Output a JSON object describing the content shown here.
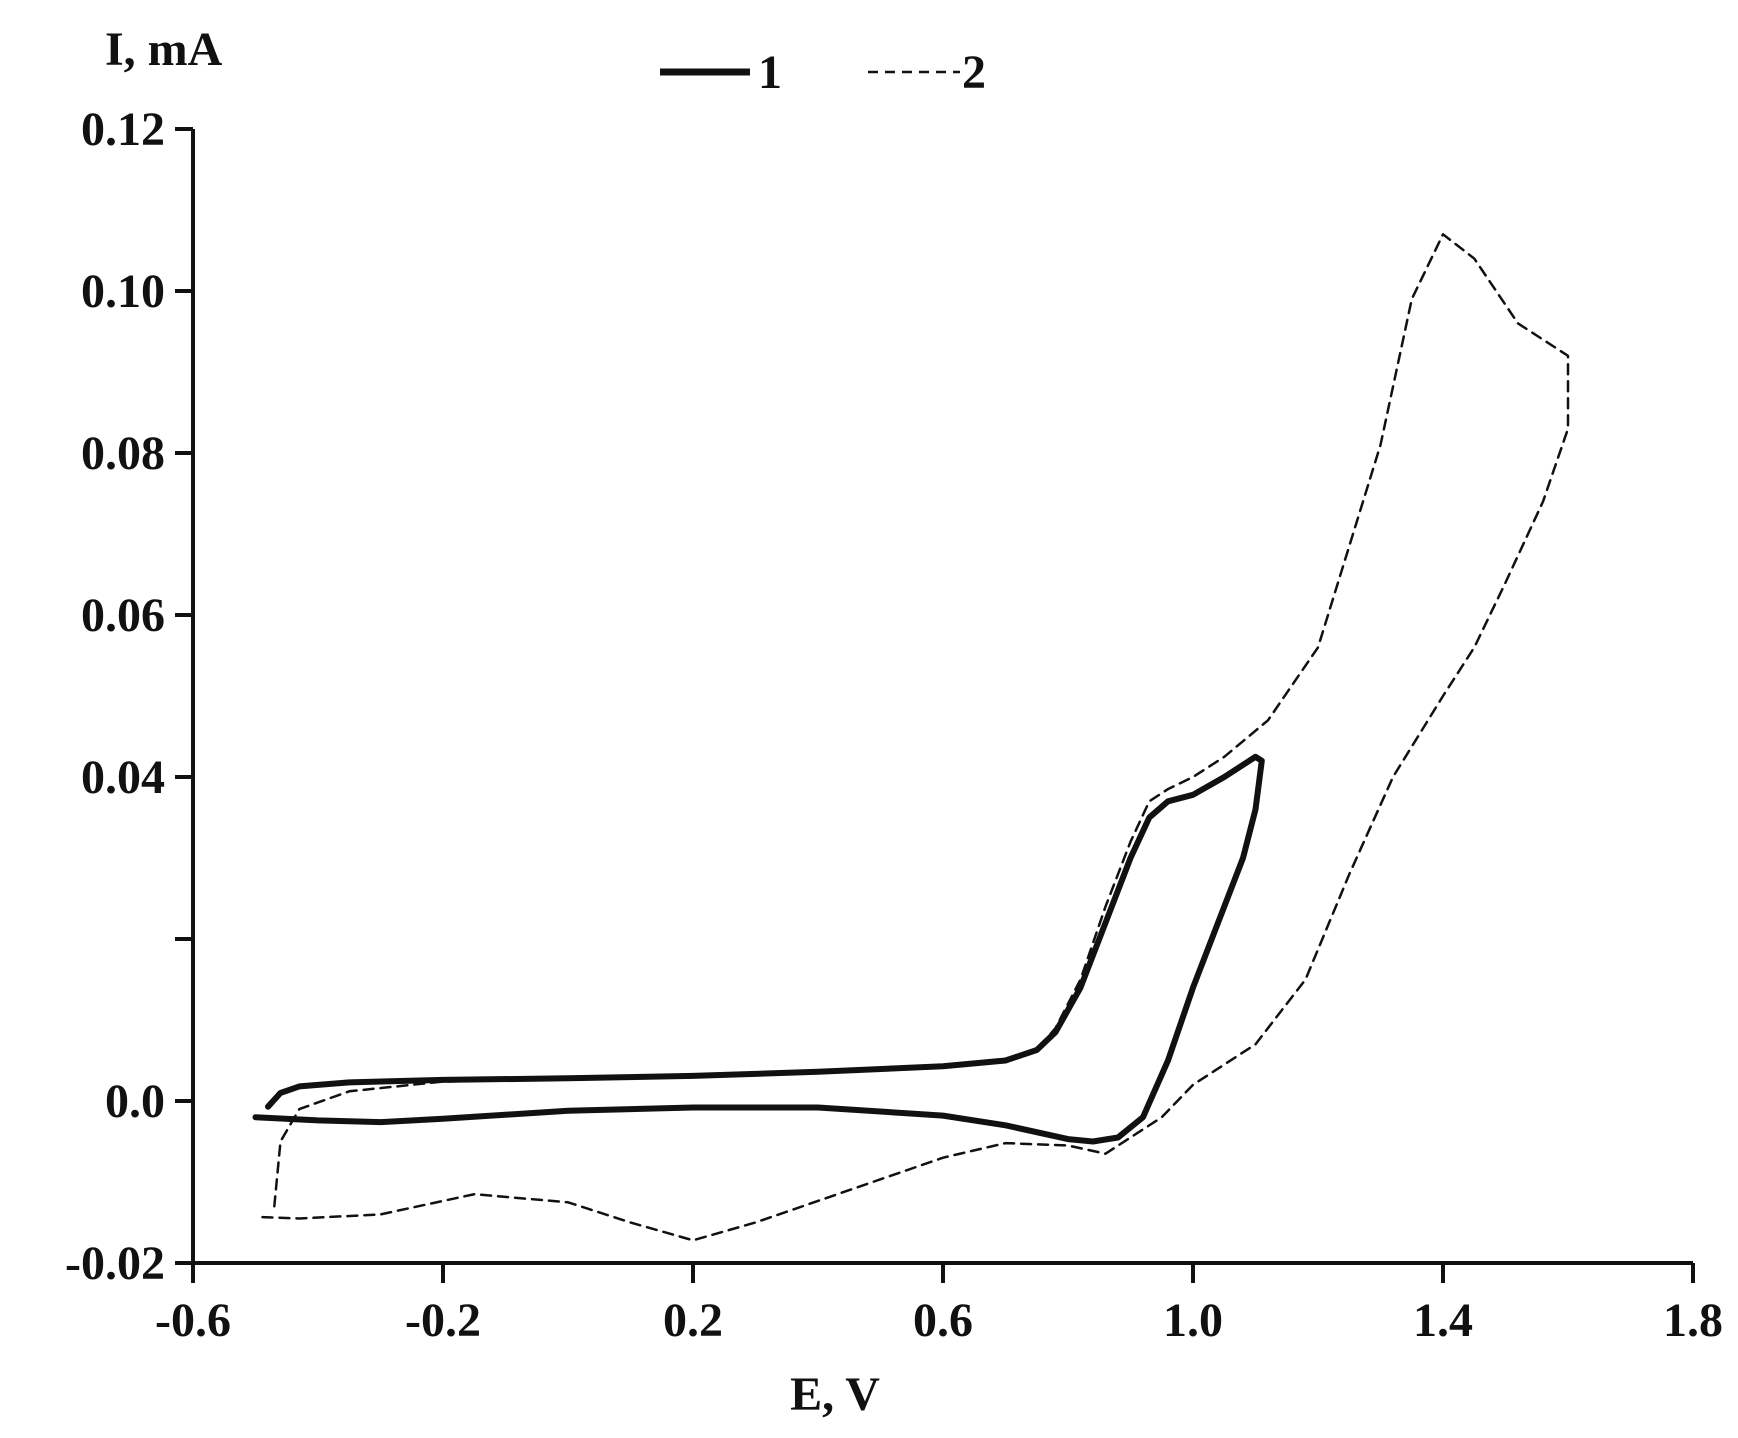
{
  "chart_data": {
    "type": "line",
    "title": "",
    "xlabel": "E, V",
    "ylabel": "I, mA",
    "xlim": [
      -0.6,
      1.8
    ],
    "ylim": [
      -0.02,
      0.12
    ],
    "x_ticks": [
      -0.6,
      -0.2,
      0.2,
      0.6,
      1.0,
      1.4,
      1.8
    ],
    "x_tick_labels": [
      "-0.6",
      "-0.2",
      "0.2",
      "0.6",
      "1.0",
      "1.4",
      "1.8"
    ],
    "y_ticks": [
      -0.02,
      0.0,
      0.02,
      0.04,
      0.06,
      0.08,
      0.1,
      0.12
    ],
    "y_tick_labels": [
      "-0.02",
      "0.0",
      "",
      "0.04",
      "0.06",
      "0.08",
      "0.10",
      "0.12"
    ],
    "grid": false,
    "legend_position": "top-center",
    "series": [
      {
        "name": "1",
        "style": "solid",
        "color": "#111111",
        "points": [
          [
            -0.48,
            -0.0007
          ],
          [
            -0.46,
            0.001
          ],
          [
            -0.43,
            0.0018
          ],
          [
            -0.35,
            0.0023
          ],
          [
            -0.2,
            0.0026
          ],
          [
            0.0,
            0.0028
          ],
          [
            0.2,
            0.0031
          ],
          [
            0.4,
            0.0036
          ],
          [
            0.6,
            0.0043
          ],
          [
            0.7,
            0.005
          ],
          [
            0.75,
            0.0063
          ],
          [
            0.78,
            0.0085
          ],
          [
            0.82,
            0.014
          ],
          [
            0.86,
            0.022
          ],
          [
            0.9,
            0.03
          ],
          [
            0.93,
            0.035
          ],
          [
            0.96,
            0.037
          ],
          [
            1.0,
            0.0378
          ],
          [
            1.05,
            0.04
          ],
          [
            1.1,
            0.0425
          ],
          [
            1.11,
            0.042
          ],
          [
            1.1,
            0.036
          ],
          [
            1.08,
            0.03
          ],
          [
            1.04,
            0.022
          ],
          [
            1.0,
            0.014
          ],
          [
            0.96,
            0.005
          ],
          [
            0.92,
            -0.002
          ],
          [
            0.88,
            -0.0045
          ],
          [
            0.84,
            -0.005
          ],
          [
            0.8,
            -0.0047
          ],
          [
            0.7,
            -0.003
          ],
          [
            0.6,
            -0.0018
          ],
          [
            0.4,
            -0.0008
          ],
          [
            0.2,
            -0.0008
          ],
          [
            0.0,
            -0.0012
          ],
          [
            -0.2,
            -0.0022
          ],
          [
            -0.3,
            -0.0026
          ],
          [
            -0.4,
            -0.0024
          ],
          [
            -0.5,
            -0.002
          ]
        ]
      },
      {
        "name": "2",
        "style": "dashed",
        "color": "#111111",
        "points": [
          [
            -0.47,
            -0.013
          ],
          [
            -0.46,
            -0.005
          ],
          [
            -0.43,
            -0.001
          ],
          [
            -0.35,
            0.0012
          ],
          [
            -0.2,
            0.0024
          ],
          [
            0.0,
            0.0028
          ],
          [
            0.2,
            0.0031
          ],
          [
            0.4,
            0.0036
          ],
          [
            0.6,
            0.0043
          ],
          [
            0.7,
            0.005
          ],
          [
            0.75,
            0.0063
          ],
          [
            0.78,
            0.009
          ],
          [
            0.82,
            0.015
          ],
          [
            0.86,
            0.024
          ],
          [
            0.9,
            0.032
          ],
          [
            0.93,
            0.037
          ],
          [
            0.96,
            0.0385
          ],
          [
            1.0,
            0.04
          ],
          [
            1.05,
            0.0425
          ],
          [
            1.12,
            0.047
          ],
          [
            1.2,
            0.056
          ],
          [
            1.3,
            0.081
          ],
          [
            1.35,
            0.099
          ],
          [
            1.4,
            0.107
          ],
          [
            1.45,
            0.104
          ],
          [
            1.52,
            0.096
          ],
          [
            1.58,
            0.093
          ],
          [
            1.6,
            0.092
          ],
          [
            1.6,
            0.083
          ],
          [
            1.56,
            0.074
          ],
          [
            1.5,
            0.064
          ],
          [
            1.45,
            0.056
          ],
          [
            1.4,
            0.05
          ],
          [
            1.32,
            0.04
          ],
          [
            1.25,
            0.028
          ],
          [
            1.18,
            0.015
          ],
          [
            1.1,
            0.007
          ],
          [
            1.0,
            0.002
          ],
          [
            0.95,
            -0.002
          ],
          [
            0.86,
            -0.0065
          ],
          [
            0.8,
            -0.0055
          ],
          [
            0.7,
            -0.0052
          ],
          [
            0.6,
            -0.007
          ],
          [
            0.45,
            -0.011
          ],
          [
            0.3,
            -0.015
          ],
          [
            0.2,
            -0.0172
          ],
          [
            0.1,
            -0.015
          ],
          [
            0.0,
            -0.0125
          ],
          [
            -0.15,
            -0.0115
          ],
          [
            -0.3,
            -0.014
          ],
          [
            -0.43,
            -0.0145
          ],
          [
            -0.5,
            -0.0143
          ]
        ]
      }
    ]
  }
}
